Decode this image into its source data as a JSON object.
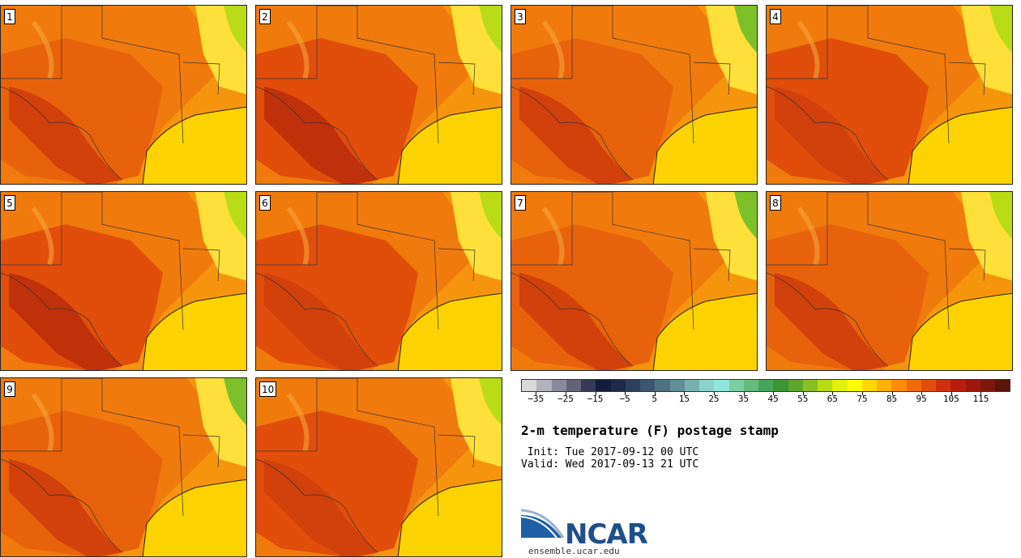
{
  "product": {
    "title": "2-m temperature (F) postage stamp",
    "init": " Init: Tue 2017-09-12 00 UTC",
    "valid": "Valid: Wed 2017-09-13 21 UTC"
  },
  "members": [
    "1",
    "2",
    "3",
    "4",
    "5",
    "6",
    "7",
    "8",
    "9",
    "10"
  ],
  "colorbar": {
    "colors": [
      "#d9d9d9",
      "#b3b3be",
      "#8a8a9c",
      "#646479",
      "#363a55",
      "#141c3a",
      "#1e2a48",
      "#2c3f5b",
      "#3b5870",
      "#4e7184",
      "#609096",
      "#78b0b0",
      "#8bd3ca",
      "#8fe6da",
      "#7ccf9e",
      "#66bb7d",
      "#4aa55c",
      "#3f9536",
      "#5ea72d",
      "#86c024",
      "#b9dc16",
      "#e4ef0a",
      "#ffff00",
      "#ffd700",
      "#ffb300",
      "#ff8c00",
      "#f06a0a",
      "#e14d0b",
      "#cf300c",
      "#b91d0d",
      "#9e160e",
      "#7f160d",
      "#5a1408"
    ],
    "tick_labels": [
      "−35",
      "−25",
      "−15",
      "−5",
      "5",
      "15",
      "25",
      "35",
      "45",
      "55",
      "65",
      "75",
      "85",
      "95",
      "105",
      "115"
    ]
  },
  "branding": {
    "logo_text": "NCAR",
    "url": "ensemble.ucar.edu"
  }
}
